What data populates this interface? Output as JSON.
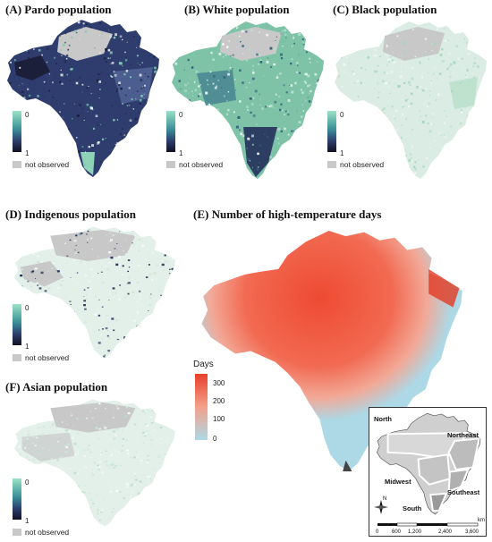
{
  "panels": [
    {
      "id": "A",
      "title": "(A) Pardo population",
      "fill": "#3a4a78",
      "fill2": "#1a1f40",
      "accent": "#7dc9b0",
      "speckle": "#e8eef0"
    },
    {
      "id": "B",
      "title": "(B) White population",
      "fill": "#7fbfa6",
      "fill2": "#2f5f76",
      "accent": "#b9e3d2",
      "speckle": "#ffffff"
    },
    {
      "id": "C",
      "title": "(C) Black population",
      "fill": "#dbece4",
      "fill2": "#b6ddc9",
      "accent": "#9fd6bd",
      "speckle": "#f4f9f6"
    },
    {
      "id": "D",
      "title": "(D) Indigenous population",
      "fill": "#e3efe9",
      "fill2": "#cbe5d8",
      "accent": "#1e2c55",
      "speckle": "#f7fbf9"
    },
    {
      "id": "F",
      "title": "(F) Asian population",
      "fill": "#e3efe9",
      "fill2": "#cfe8dc",
      "accent": "#b7dfcb",
      "speckle": "#f7fbf9"
    }
  ],
  "proportion_legend": {
    "top": "0",
    "bottom": "1",
    "not_observed": "not observed",
    "na_color": "#c8c8c8"
  },
  "temperature_panel": {
    "title": "(E) Number of high-temperature days",
    "legend_title": "Days",
    "ticks": [
      "300",
      "200",
      "100",
      "0"
    ],
    "hot_color": "#e8402a",
    "mid_color": "#f3a08a",
    "cool_color": "#add8e6"
  },
  "region_inset": {
    "regions": [
      "North",
      "Northeast",
      "Midwest",
      "Southeast",
      "South"
    ],
    "scale_ticks": [
      "0",
      "600",
      "1,200",
      "2,400",
      "3,600"
    ],
    "scale_unit": "km",
    "compass": "N"
  }
}
